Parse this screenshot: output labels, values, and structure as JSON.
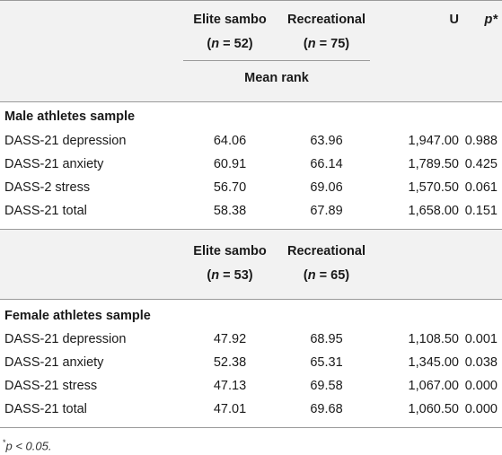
{
  "header1": {
    "col1_line1": "Elite sambo",
    "col1_n_label": "n",
    "col1_n_value": "52",
    "col2_line1": "Recreational",
    "col2_n_label": "n",
    "col2_n_value": "75",
    "col3": "U",
    "col4": "p*",
    "subheader": "Mean rank"
  },
  "male": {
    "title": "Male athletes sample",
    "rows": [
      {
        "label": "DASS-21 depression",
        "elite": "64.06",
        "rec": "63.96",
        "u": "1,947.00",
        "p": "0.988"
      },
      {
        "label": "DASS-21 anxiety",
        "elite": "60.91",
        "rec": "66.14",
        "u": "1,789.50",
        "p": "0.425"
      },
      {
        "label": "DASS-2 stress",
        "elite": "56.70",
        "rec": "69.06",
        "u": "1,570.50",
        "p": "0.061"
      },
      {
        "label": "DASS-21 total",
        "elite": "58.38",
        "rec": "67.89",
        "u": "1,658.00",
        "p": "0.151"
      }
    ]
  },
  "header2": {
    "col1_line1": "Elite sambo",
    "col1_n_label": "n",
    "col1_n_value": "53",
    "col2_line1": "Recreational",
    "col2_n_label": "n",
    "col2_n_value": "65"
  },
  "female": {
    "title": "Female athletes sample",
    "rows": [
      {
        "label": "DASS-21 depression",
        "elite": "47.92",
        "rec": "68.95",
        "u": "1,108.50",
        "p": "0.001"
      },
      {
        "label": "DASS-21 anxiety",
        "elite": "52.38",
        "rec": "65.31",
        "u": "1,345.00",
        "p": "0.038"
      },
      {
        "label": "DASS-21 stress",
        "elite": "47.13",
        "rec": "69.58",
        "u": "1,067.00",
        "p": "0.000"
      },
      {
        "label": "DASS-21 total",
        "elite": "47.01",
        "rec": "69.68",
        "u": "1,060.50",
        "p": "0.000"
      }
    ]
  },
  "footnote": {
    "mark": "*",
    "text": "p < 0.05."
  }
}
